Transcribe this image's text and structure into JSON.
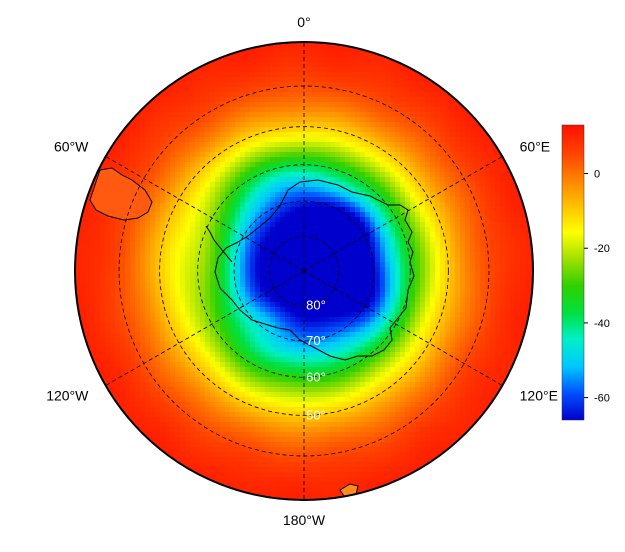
{
  "map": {
    "projection": "south-polar-stereographic",
    "longitude_labels": [
      {
        "lon": 0,
        "text": "0°"
      },
      {
        "lon": 60,
        "text": "60°E"
      },
      {
        "lon": 120,
        "text": "120°E"
      },
      {
        "lon": 180,
        "text": "180°W"
      },
      {
        "lon": -120,
        "text": "120°W"
      },
      {
        "lon": -60,
        "text": "60°W"
      }
    ],
    "latitude_circles": [
      {
        "lat": -80,
        "text": "80°"
      },
      {
        "lat": -70,
        "text": "70°"
      },
      {
        "lat": -60,
        "text": "60°"
      },
      {
        "lat": -50,
        "text": "50°"
      },
      {
        "lat": -40,
        "text": ""
      }
    ],
    "outer_latitude": -30
  },
  "colorbar": {
    "min": -66,
    "max": 13,
    "ticks": [
      0,
      -20,
      -40,
      -60
    ],
    "tick_labels": [
      "0",
      "-20",
      "-40",
      "-60"
    ],
    "colors": [
      "#0000cc",
      "#0050ff",
      "#00c8ff",
      "#00f0c8",
      "#00e040",
      "#30d000",
      "#a0e000",
      "#ffff00",
      "#ffc000",
      "#ff8000",
      "#ff4000",
      "#ff1000"
    ]
  }
}
